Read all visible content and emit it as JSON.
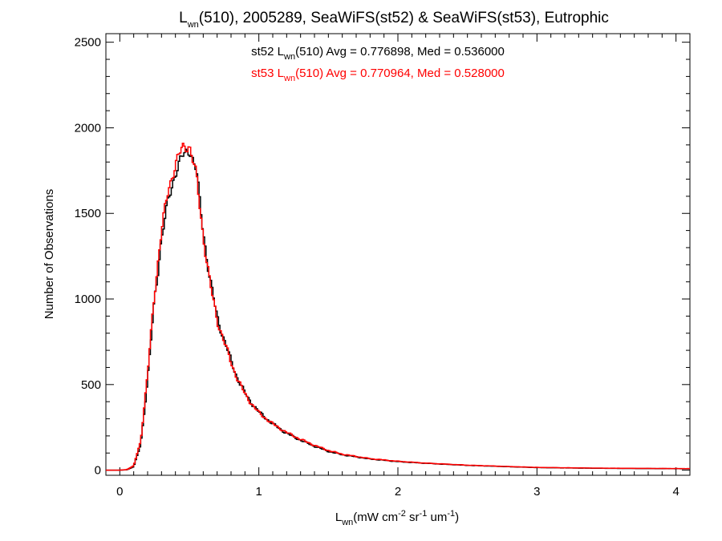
{
  "chart_data": {
    "type": "histogram",
    "title": {
      "prefix": "L",
      "sub": "wn",
      "suffix": "(510), 2005289, SeaWiFS(st52) & SeaWiFS(st53), Eutrophic"
    },
    "xlabel": {
      "prefix": "L",
      "sub": "wn",
      "units": "(mW cm",
      "sup1": "-2",
      "mid": " sr",
      "sup2": "-1",
      "mid2": " um",
      "sup3": "-1",
      "end": ")"
    },
    "ylabel": "Number of Observations",
    "xlim": [
      -0.1,
      4.1
    ],
    "ylim": [
      -30,
      2550
    ],
    "xticks": [
      "0",
      "1",
      "2",
      "3",
      "4"
    ],
    "yticks": [
      "0",
      "500",
      "1000",
      "1500",
      "2000",
      "2500"
    ],
    "annotations": [
      {
        "series": "st52",
        "color": "#000000",
        "prefix": "st52 L",
        "sub": "wn",
        "suffix": "(510) Avg = 0.776898, Med = 0.536000"
      },
      {
        "series": "st53",
        "color": "#ff0000",
        "prefix": "st53 L",
        "sub": "wn",
        "suffix": "(510) Avg = 0.770964, Med = 0.528000"
      }
    ],
    "series": [
      {
        "name": "st52",
        "color": "#000000",
        "points": [
          [
            -0.1,
            0
          ],
          [
            0.0,
            0
          ],
          [
            0.05,
            2
          ],
          [
            0.1,
            20
          ],
          [
            0.15,
            150
          ],
          [
            0.2,
            520
          ],
          [
            0.25,
            1000
          ],
          [
            0.3,
            1350
          ],
          [
            0.35,
            1580
          ],
          [
            0.4,
            1740
          ],
          [
            0.45,
            1830
          ],
          [
            0.5,
            1880
          ],
          [
            0.55,
            1750
          ],
          [
            0.6,
            1400
          ],
          [
            0.65,
            1100
          ],
          [
            0.7,
            900
          ],
          [
            0.75,
            760
          ],
          [
            0.8,
            640
          ],
          [
            0.85,
            530
          ],
          [
            0.9,
            450
          ],
          [
            0.95,
            390
          ],
          [
            1.0,
            340
          ],
          [
            1.1,
            270
          ],
          [
            1.2,
            215
          ],
          [
            1.3,
            175
          ],
          [
            1.4,
            140
          ],
          [
            1.5,
            110
          ],
          [
            1.6,
            90
          ],
          [
            1.8,
            65
          ],
          [
            2.0,
            50
          ],
          [
            2.2,
            40
          ],
          [
            2.5,
            28
          ],
          [
            2.8,
            20
          ],
          [
            3.0,
            15
          ],
          [
            3.3,
            12
          ],
          [
            3.6,
            10
          ],
          [
            4.1,
            8
          ]
        ]
      },
      {
        "name": "st53",
        "color": "#ff0000",
        "points": [
          [
            -0.1,
            0
          ],
          [
            0.0,
            0
          ],
          [
            0.05,
            3
          ],
          [
            0.1,
            25
          ],
          [
            0.15,
            170
          ],
          [
            0.2,
            560
          ],
          [
            0.25,
            1040
          ],
          [
            0.3,
            1400
          ],
          [
            0.35,
            1640
          ],
          [
            0.4,
            1790
          ],
          [
            0.45,
            1880
          ],
          [
            0.5,
            1900
          ],
          [
            0.55,
            1720
          ],
          [
            0.6,
            1370
          ],
          [
            0.65,
            1080
          ],
          [
            0.7,
            880
          ],
          [
            0.75,
            750
          ],
          [
            0.8,
            630
          ],
          [
            0.85,
            525
          ],
          [
            0.9,
            445
          ],
          [
            0.95,
            385
          ],
          [
            1.0,
            335
          ],
          [
            1.1,
            270
          ],
          [
            1.2,
            220
          ],
          [
            1.3,
            180
          ],
          [
            1.4,
            145
          ],
          [
            1.5,
            115
          ],
          [
            1.6,
            93
          ],
          [
            1.8,
            67
          ],
          [
            2.0,
            52
          ],
          [
            2.2,
            41
          ],
          [
            2.5,
            29
          ],
          [
            2.8,
            21
          ],
          [
            3.0,
            16
          ],
          [
            3.3,
            13
          ],
          [
            3.6,
            11
          ],
          [
            4.1,
            9
          ]
        ]
      }
    ]
  }
}
